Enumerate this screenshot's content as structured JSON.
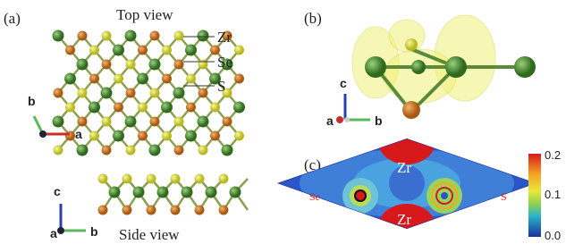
{
  "panel_a": {
    "label": "(a)",
    "top_view": "Top view",
    "atom_labels": [
      "Zr",
      "Se",
      "S"
    ],
    "top_axes": [
      "b",
      "a"
    ],
    "side_axes": [
      "c",
      "a",
      "b"
    ],
    "side_view": "Side view"
  },
  "panel_b": {
    "label": "(b)",
    "axes": [
      "c",
      "a",
      "b"
    ]
  },
  "panel_c": {
    "label": "(c)",
    "map_labels": [
      "Zr",
      "Zr",
      "Se",
      "S"
    ],
    "colorbar_ticks": [
      "0.2",
      "0.1",
      "0.0"
    ]
  }
}
